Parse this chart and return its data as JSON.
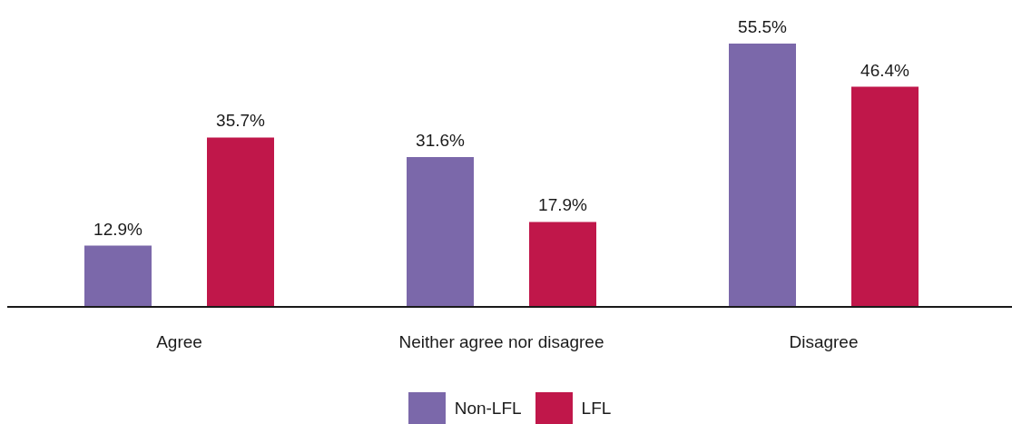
{
  "chart_data": {
    "type": "bar",
    "categories": [
      "Agree",
      "Neither agree nor disagree",
      "Disagree"
    ],
    "series": [
      {
        "name": "Non-LFL",
        "color": "#7b68aa",
        "values": [
          12.9,
          31.6,
          55.5
        ],
        "value_labels": [
          "12.9%",
          "31.6%",
          "55.5%"
        ]
      },
      {
        "name": "LFL",
        "color": "#c0174a",
        "values": [
          35.7,
          17.9,
          46.4
        ],
        "value_labels": [
          "35.7%",
          "17.9%",
          "46.4%"
        ]
      }
    ],
    "legend": "bottom",
    "tick_labels": "x"
  }
}
